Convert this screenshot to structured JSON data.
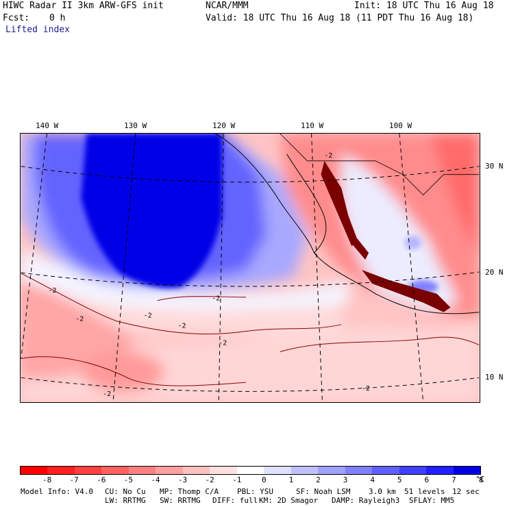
{
  "header": {
    "model_title": "HIWC Radar II 3km ARW-GFS init",
    "org": "NCAR/MMM",
    "init": "Init: 18 UTC Thu 16 Aug 18",
    "fcst_label": "Fcst:",
    "fcst_value": "0 h",
    "valid": "Valid: 18 UTC Thu 16 Aug 18 (11 PDT Thu 16 Aug 18)",
    "field": "Lifted index"
  },
  "map": {
    "lon_labels": [
      "140 W",
      "130 W",
      "120 W",
      "110 W",
      "100 W"
    ],
    "lat_labels": [
      "30 N",
      "20 N",
      "10 N"
    ],
    "contour_label": "-2"
  },
  "colorbar": {
    "ticks": [
      "-8",
      "-7",
      "-6",
      "-5",
      "-4",
      "-3",
      "-2",
      "-1",
      "0",
      "1",
      "2",
      "3",
      "4",
      "5",
      "6",
      "7",
      "8"
    ],
    "unit": "°C",
    "colors": [
      "#ff0000",
      "#ff2020",
      "#ff4040",
      "#ff6060",
      "#ff8080",
      "#ffa0a0",
      "#ffc0c0",
      "#ffe0e0",
      "#ffffff",
      "#e0e0ff",
      "#c0c0ff",
      "#a0a0ff",
      "#8080ff",
      "#6060ff",
      "#4040ff",
      "#2020ff",
      "#0000e0"
    ]
  },
  "footer": {
    "model_info": "Model Info: V4.0",
    "cu": "CU: No Cu",
    "mp": "MP: Thomp C/A",
    "pbl": "PBL: YSU",
    "sf": "SF: Noah LSM",
    "res": "3.0 km",
    "levels": "51 levels",
    "dt": "12 sec",
    "lw": "LW: RRTMG",
    "sw": "SW: RRTMG",
    "diff": "DIFF: full",
    "km": "KM: 2D Smagor",
    "damp": "DAMP: Rayleigh3",
    "sflay": "SFLAY: MM5"
  }
}
